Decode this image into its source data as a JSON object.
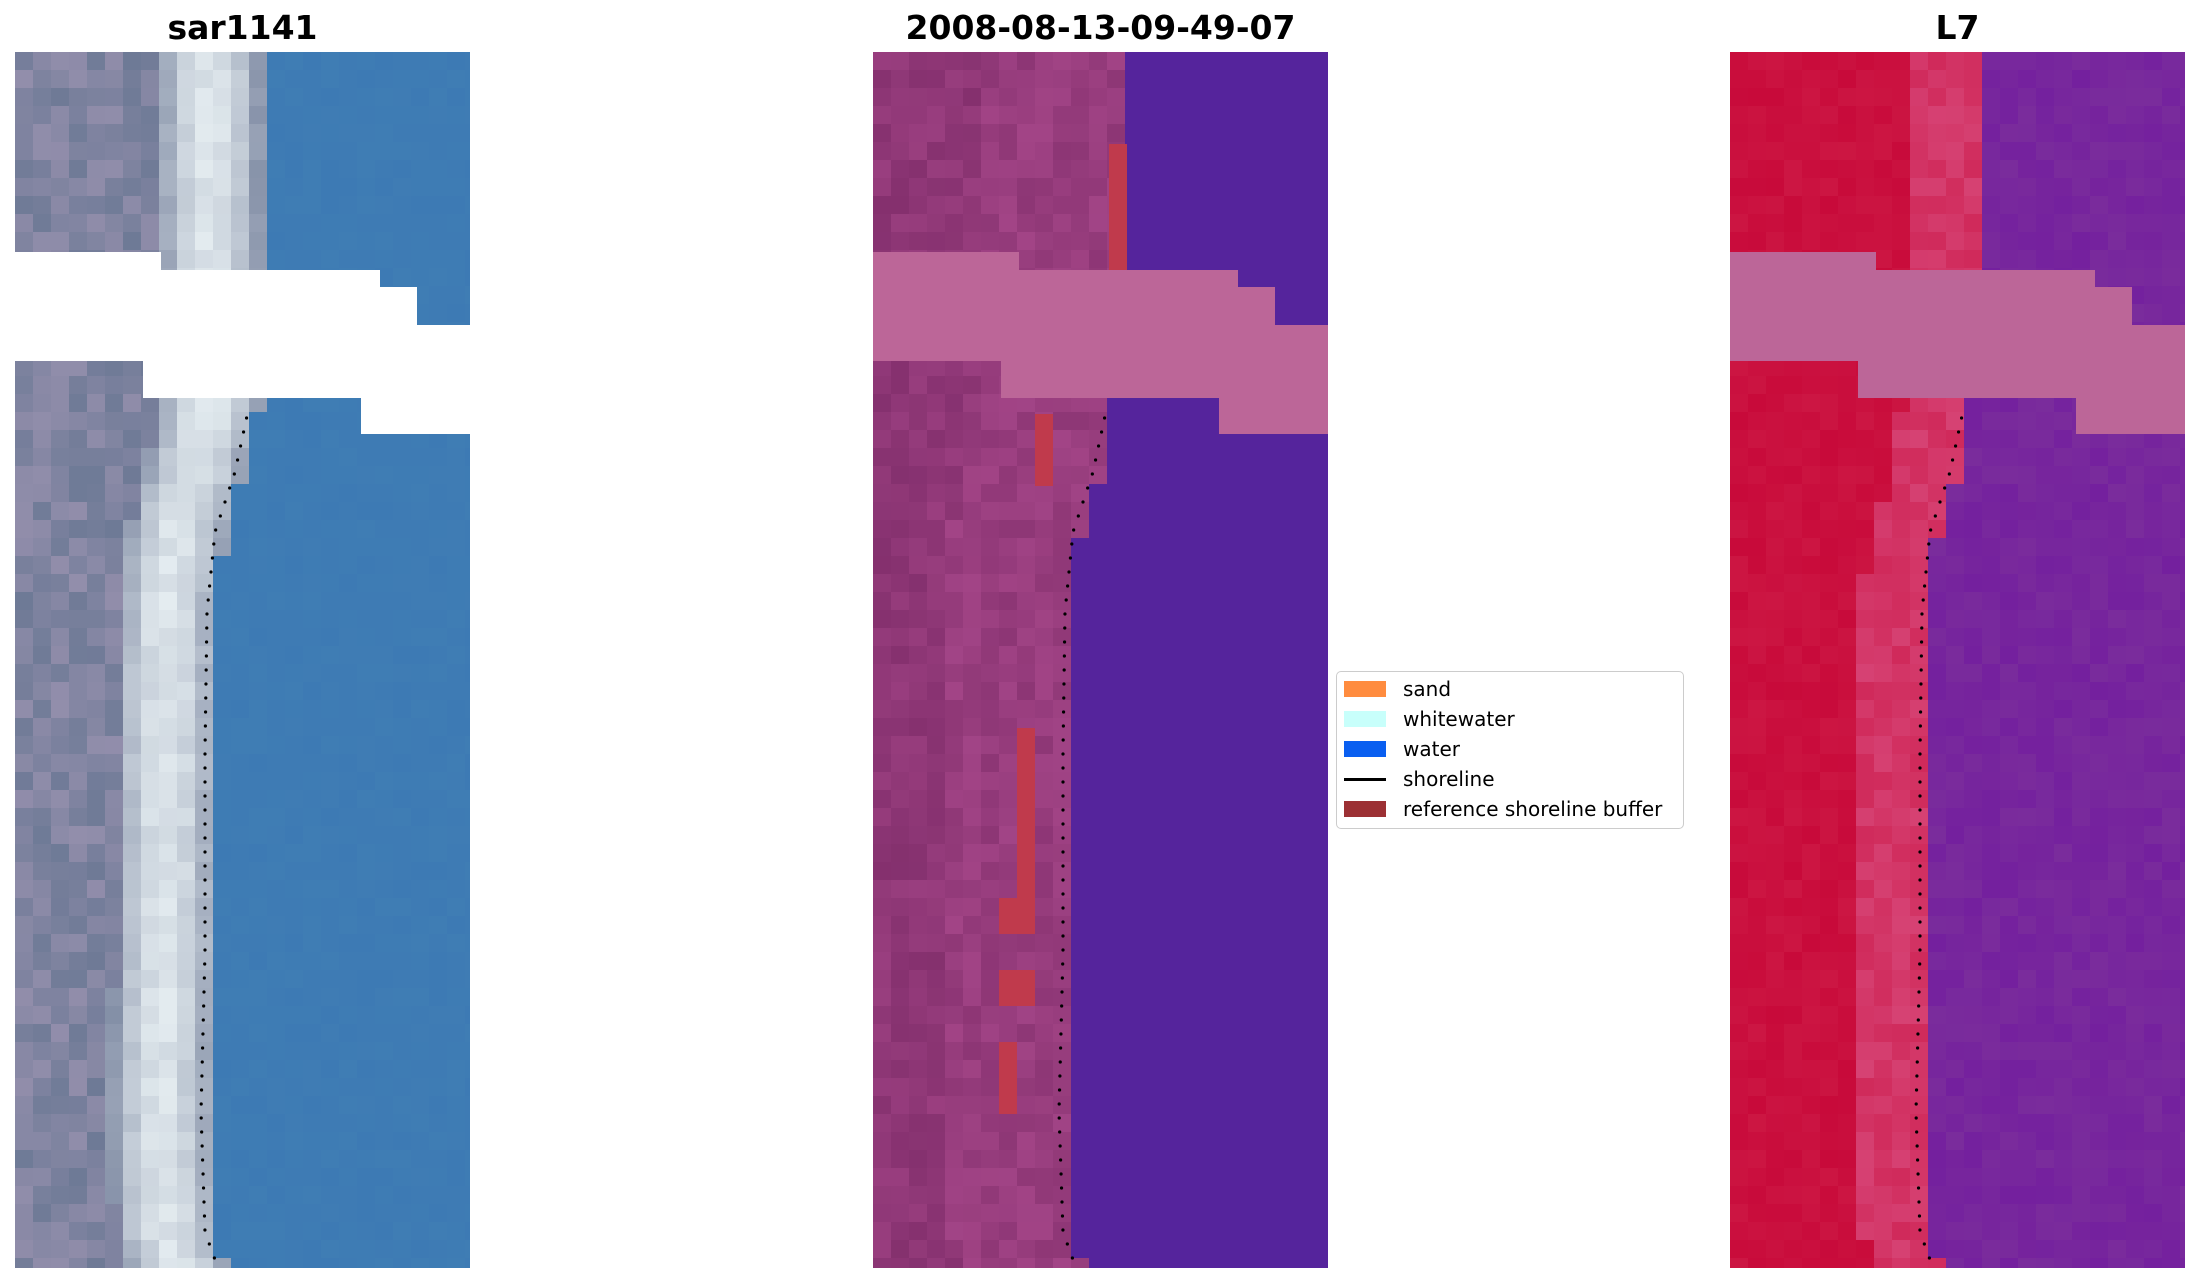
{
  "panels": [
    {
      "title": "sar1141"
    },
    {
      "title": "2008-08-13-09-49-07"
    },
    {
      "title": "L7"
    }
  ],
  "legend": {
    "items": [
      {
        "label": "sand",
        "color": "#ff8c3f"
      },
      {
        "label": "whitewater",
        "color": "#c8fffb"
      },
      {
        "label": "water",
        "color": "#0a5ff0"
      },
      {
        "label": "shoreline",
        "color": "#000000"
      },
      {
        "label": "reference shoreline buffer",
        "color": "#9c3034"
      }
    ]
  },
  "colors": {
    "rgb_water": "#3f7db4",
    "rgb_beach": "#e4ecf0",
    "rgb_land": "#6e7a96",
    "class_water": "#55249c",
    "class_land": "#a24486",
    "class_buffer": "#c03a4c",
    "class_cloudmask": "#bc6698",
    "mndwi_land": "#c80a3a",
    "mndwi_water": "#7a2c9c",
    "mndwi_cloudmask": "#bc6698"
  }
}
